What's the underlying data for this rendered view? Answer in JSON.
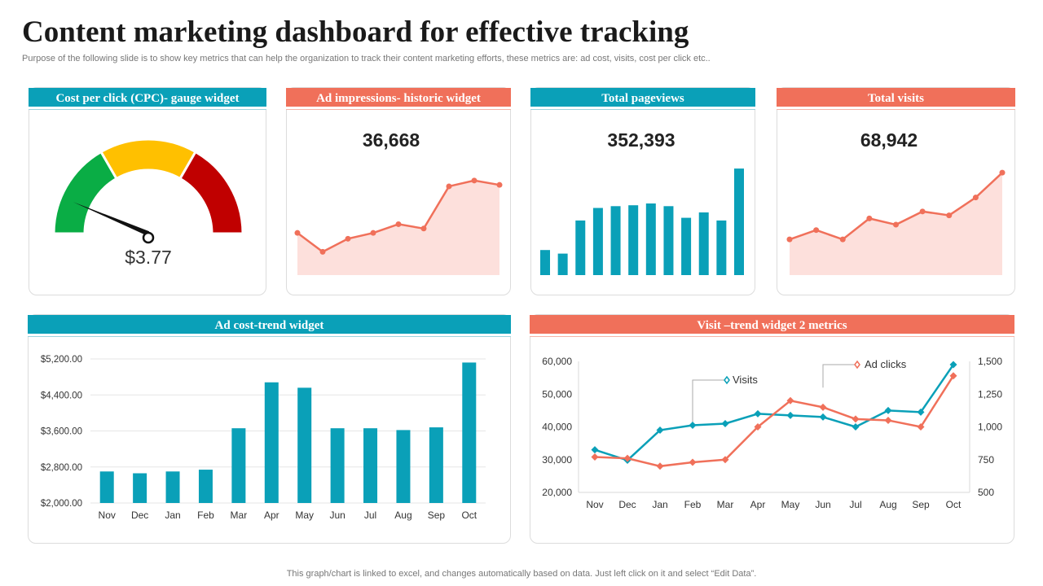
{
  "page": {
    "title": "Content marketing dashboard for effective tracking",
    "subtitle": "Purpose of the following slide is to show key metrics that can help the organization to track their content marketing efforts, these metrics are: ad cost, visits, cost per click etc..",
    "footer": "This graph/chart is linked to excel, and changes automatically based on data. Just left click on it and select “Edit Data”."
  },
  "colors": {
    "teal": "#0aa0b8",
    "coral": "#f0705a",
    "fill_pink": "#fde0dc",
    "green": "#0aad45",
    "yellow": "#ffc000",
    "red": "#c00000"
  },
  "widgets": {
    "cpc": {
      "header": "Cost per click (CPC)- gauge widget",
      "value_label": "$3.77",
      "value": 3.77
    },
    "impressions": {
      "header": "Ad impressions- historic widget",
      "total": "36,668"
    },
    "pageviews": {
      "header": "Total pageviews",
      "total": "352,393"
    },
    "visits": {
      "header": "Total visits",
      "total": "68,942"
    },
    "adcost": {
      "header": "Ad cost-trend widget"
    },
    "visit_trend": {
      "header": "Visit –trend widget 2 metrics"
    }
  },
  "chart_data": [
    {
      "id": "cpc_gauge",
      "type": "gauge",
      "title": "Cost per click (CPC)- gauge widget",
      "segments": [
        "green",
        "yellow",
        "red"
      ],
      "value": 3.77,
      "needle_fraction": 0.2
    },
    {
      "id": "impressions",
      "type": "area",
      "title": "Ad impressions- historic widget",
      "values": [
        2.9,
        1.6,
        2.5,
        2.9,
        3.5,
        3.2,
        6.1,
        6.5,
        6.2
      ],
      "ylim": [
        0,
        8
      ]
    },
    {
      "id": "pageviews",
      "type": "bar",
      "title": "Total pageviews",
      "values": [
        28,
        24,
        61,
        75,
        77,
        78,
        80,
        77,
        64,
        70,
        61,
        119
      ],
      "ylim": [
        0,
        130
      ]
    },
    {
      "id": "visits",
      "type": "area",
      "title": "Total visits",
      "values": [
        46,
        58,
        46,
        73,
        65,
        82,
        77,
        100,
        132
      ],
      "ylim": [
        0,
        150
      ]
    },
    {
      "id": "adcost",
      "type": "bar",
      "title": "Ad cost-trend widget",
      "categories": [
        "Nov",
        "Dec",
        "Jan",
        "Feb",
        "Mar",
        "Apr",
        "May",
        "Jun",
        "Jul",
        "Aug",
        "Sep",
        "Oct"
      ],
      "values": [
        2700,
        2660,
        2700,
        2740,
        3660,
        4680,
        4560,
        3660,
        3660,
        3620,
        3680,
        5120
      ],
      "ylim": [
        2000,
        5200
      ],
      "yticks": [
        2000,
        2800,
        3600,
        4400,
        5200
      ],
      "ytick_labels": [
        "$2,000.00",
        "$2,800.00",
        "$3,600.00",
        "$4,400.00",
        "$5,200.00"
      ],
      "grid": true
    },
    {
      "id": "visit_trend",
      "type": "line",
      "title": "Visit –trend widget 2 metrics",
      "categories": [
        "Nov",
        "Dec",
        "Jan",
        "Feb",
        "Mar",
        "Apr",
        "May",
        "Jun",
        "Jul",
        "Aug",
        "Sep",
        "Oct"
      ],
      "series": [
        {
          "name": "Visits",
          "axis": "left",
          "color": "#0aa0b8",
          "values": [
            33000,
            29800,
            39000,
            40500,
            41000,
            44000,
            43500,
            43000,
            40000,
            45000,
            44500,
            59000
          ]
        },
        {
          "name": "Ad clicks",
          "axis": "right",
          "color": "#f0705a",
          "values": [
            770,
            760,
            700,
            730,
            750,
            1000,
            1200,
            1150,
            1060,
            1050,
            1000,
            1390
          ]
        }
      ],
      "ylim_left": [
        20000,
        60000
      ],
      "yticks_left": [
        "20,000",
        "30,000",
        "40,000",
        "50,000",
        "60,000"
      ],
      "ylim_right": [
        500,
        1500
      ],
      "yticks_right": [
        "500",
        "750",
        "1,000",
        "1,250",
        "1,500"
      ],
      "legend": "top-center"
    }
  ]
}
